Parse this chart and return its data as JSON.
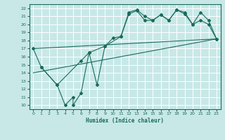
{
  "xlabel": "Humidex (Indice chaleur)",
  "bg_color": "#c8e8e8",
  "grid_color": "#ffffff",
  "line_color": "#1a6b5a",
  "xlim": [
    -0.5,
    23.5
  ],
  "ylim": [
    9.5,
    22.5
  ],
  "xticks": [
    0,
    1,
    2,
    3,
    4,
    5,
    6,
    7,
    8,
    9,
    10,
    11,
    12,
    13,
    14,
    15,
    16,
    17,
    18,
    19,
    20,
    21,
    22,
    23
  ],
  "yticks": [
    10,
    11,
    12,
    13,
    14,
    15,
    16,
    17,
    18,
    19,
    20,
    21,
    22
  ],
  "line1_x": [
    0,
    1,
    3,
    4,
    5,
    5,
    6,
    7,
    8,
    9,
    10,
    11,
    12,
    13,
    14,
    15,
    16,
    17,
    18,
    19,
    20,
    21,
    22,
    23
  ],
  "line1_y": [
    17.0,
    14.7,
    12.5,
    10.0,
    11.0,
    10.0,
    11.5,
    16.5,
    12.5,
    17.3,
    18.3,
    18.5,
    21.3,
    21.7,
    20.5,
    20.5,
    21.2,
    20.5,
    21.8,
    21.3,
    20.0,
    20.5,
    20.0,
    18.2
  ],
  "line2_x": [
    1,
    3,
    6,
    7,
    9,
    11,
    12,
    13,
    14,
    15,
    16,
    17,
    18,
    19,
    20,
    21,
    22,
    23
  ],
  "line2_y": [
    14.7,
    12.5,
    15.5,
    16.5,
    17.3,
    18.5,
    21.5,
    21.8,
    21.0,
    20.5,
    21.2,
    20.5,
    21.8,
    21.5,
    20.0,
    21.5,
    20.5,
    18.2
  ],
  "line3_x": [
    0,
    23
  ],
  "line3_y": [
    14.0,
    18.2
  ],
  "line4_x": [
    0,
    23
  ],
  "line4_y": [
    17.0,
    18.2
  ]
}
